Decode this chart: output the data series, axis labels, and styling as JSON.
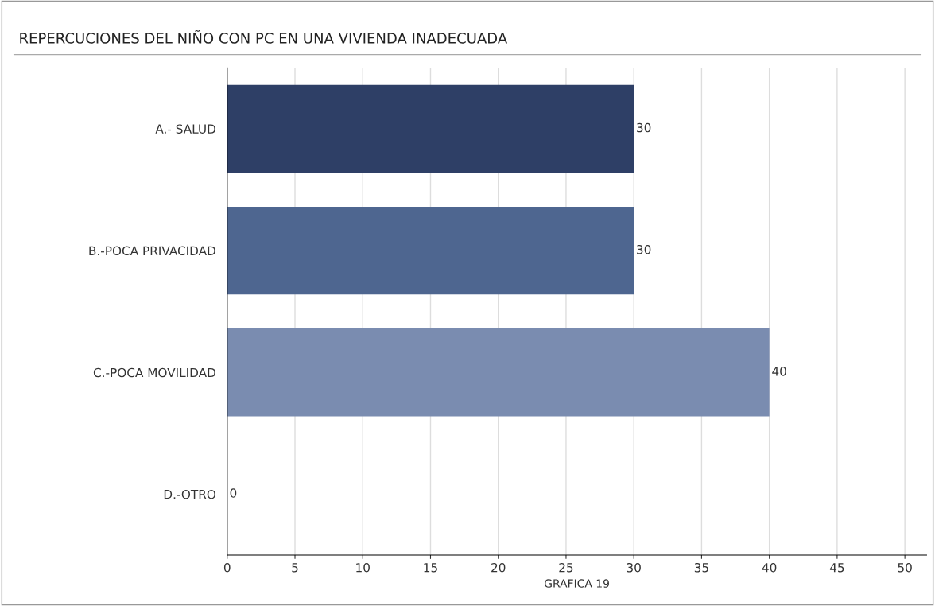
{
  "chart_data": {
    "type": "bar",
    "orientation": "horizontal",
    "title": "REPERCUCIONES DEL NIÑO CON PC EN UNA VIVIENDA INADECUADA",
    "xlabel": "GRAFICA 19",
    "categories": [
      "A.- SALUD",
      "B.-POCA PRIVACIDAD",
      "C.-POCA MOVILIDAD",
      "D.-OTRO"
    ],
    "values": [
      30,
      30,
      40,
      0
    ],
    "colors": [
      "#2e3f66",
      "#4e6690",
      "#7a8cb0",
      "#7a8cb0"
    ],
    "xlim": [
      0,
      51.6
    ],
    "xticks": [
      0,
      5,
      10,
      15,
      20,
      25,
      30,
      35,
      40,
      45,
      50
    ],
    "grid": "x",
    "data_labels": true
  }
}
